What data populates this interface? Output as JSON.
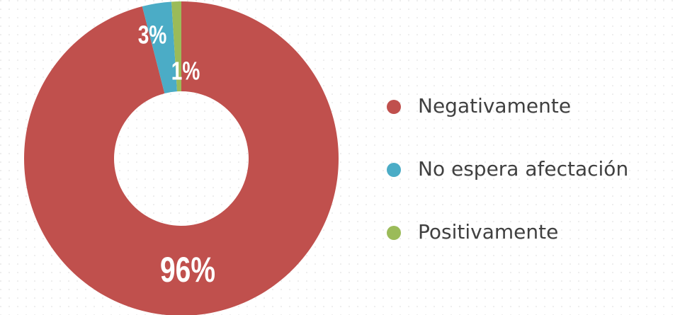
{
  "chart_data": {
    "type": "donut",
    "categories": [
      "Negativamente",
      "No espera afectación",
      "Positivamente"
    ],
    "values": [
      96,
      3,
      1
    ],
    "value_labels": [
      "96%",
      "3%",
      "1%"
    ],
    "colors": [
      "#c0504d",
      "#4bacc6",
      "#9bbb59"
    ]
  }
}
